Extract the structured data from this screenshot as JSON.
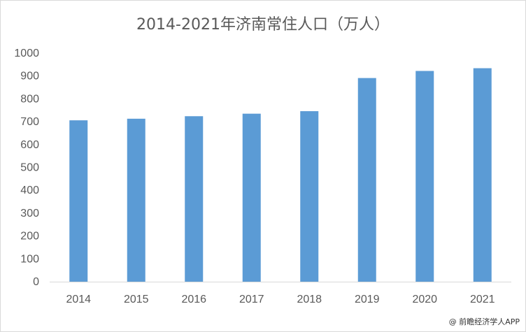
{
  "chart_data": {
    "type": "bar",
    "title": "2014-2021年济南常住人口（万人）",
    "xlabel": "",
    "ylabel": "",
    "categories": [
      "2014",
      "2015",
      "2016",
      "2017",
      "2018",
      "2019",
      "2020",
      "2021"
    ],
    "values": [
      706,
      713,
      724,
      735,
      746,
      891,
      922,
      934
    ],
    "ylim": [
      0,
      1000
    ],
    "yticks": [
      0,
      100,
      200,
      300,
      400,
      500,
      600,
      700,
      800,
      900,
      1000
    ],
    "grid": false,
    "legend": "none",
    "bar_color": "#5B9BD5"
  },
  "watermark": "@ 前瞻经济学人APP"
}
